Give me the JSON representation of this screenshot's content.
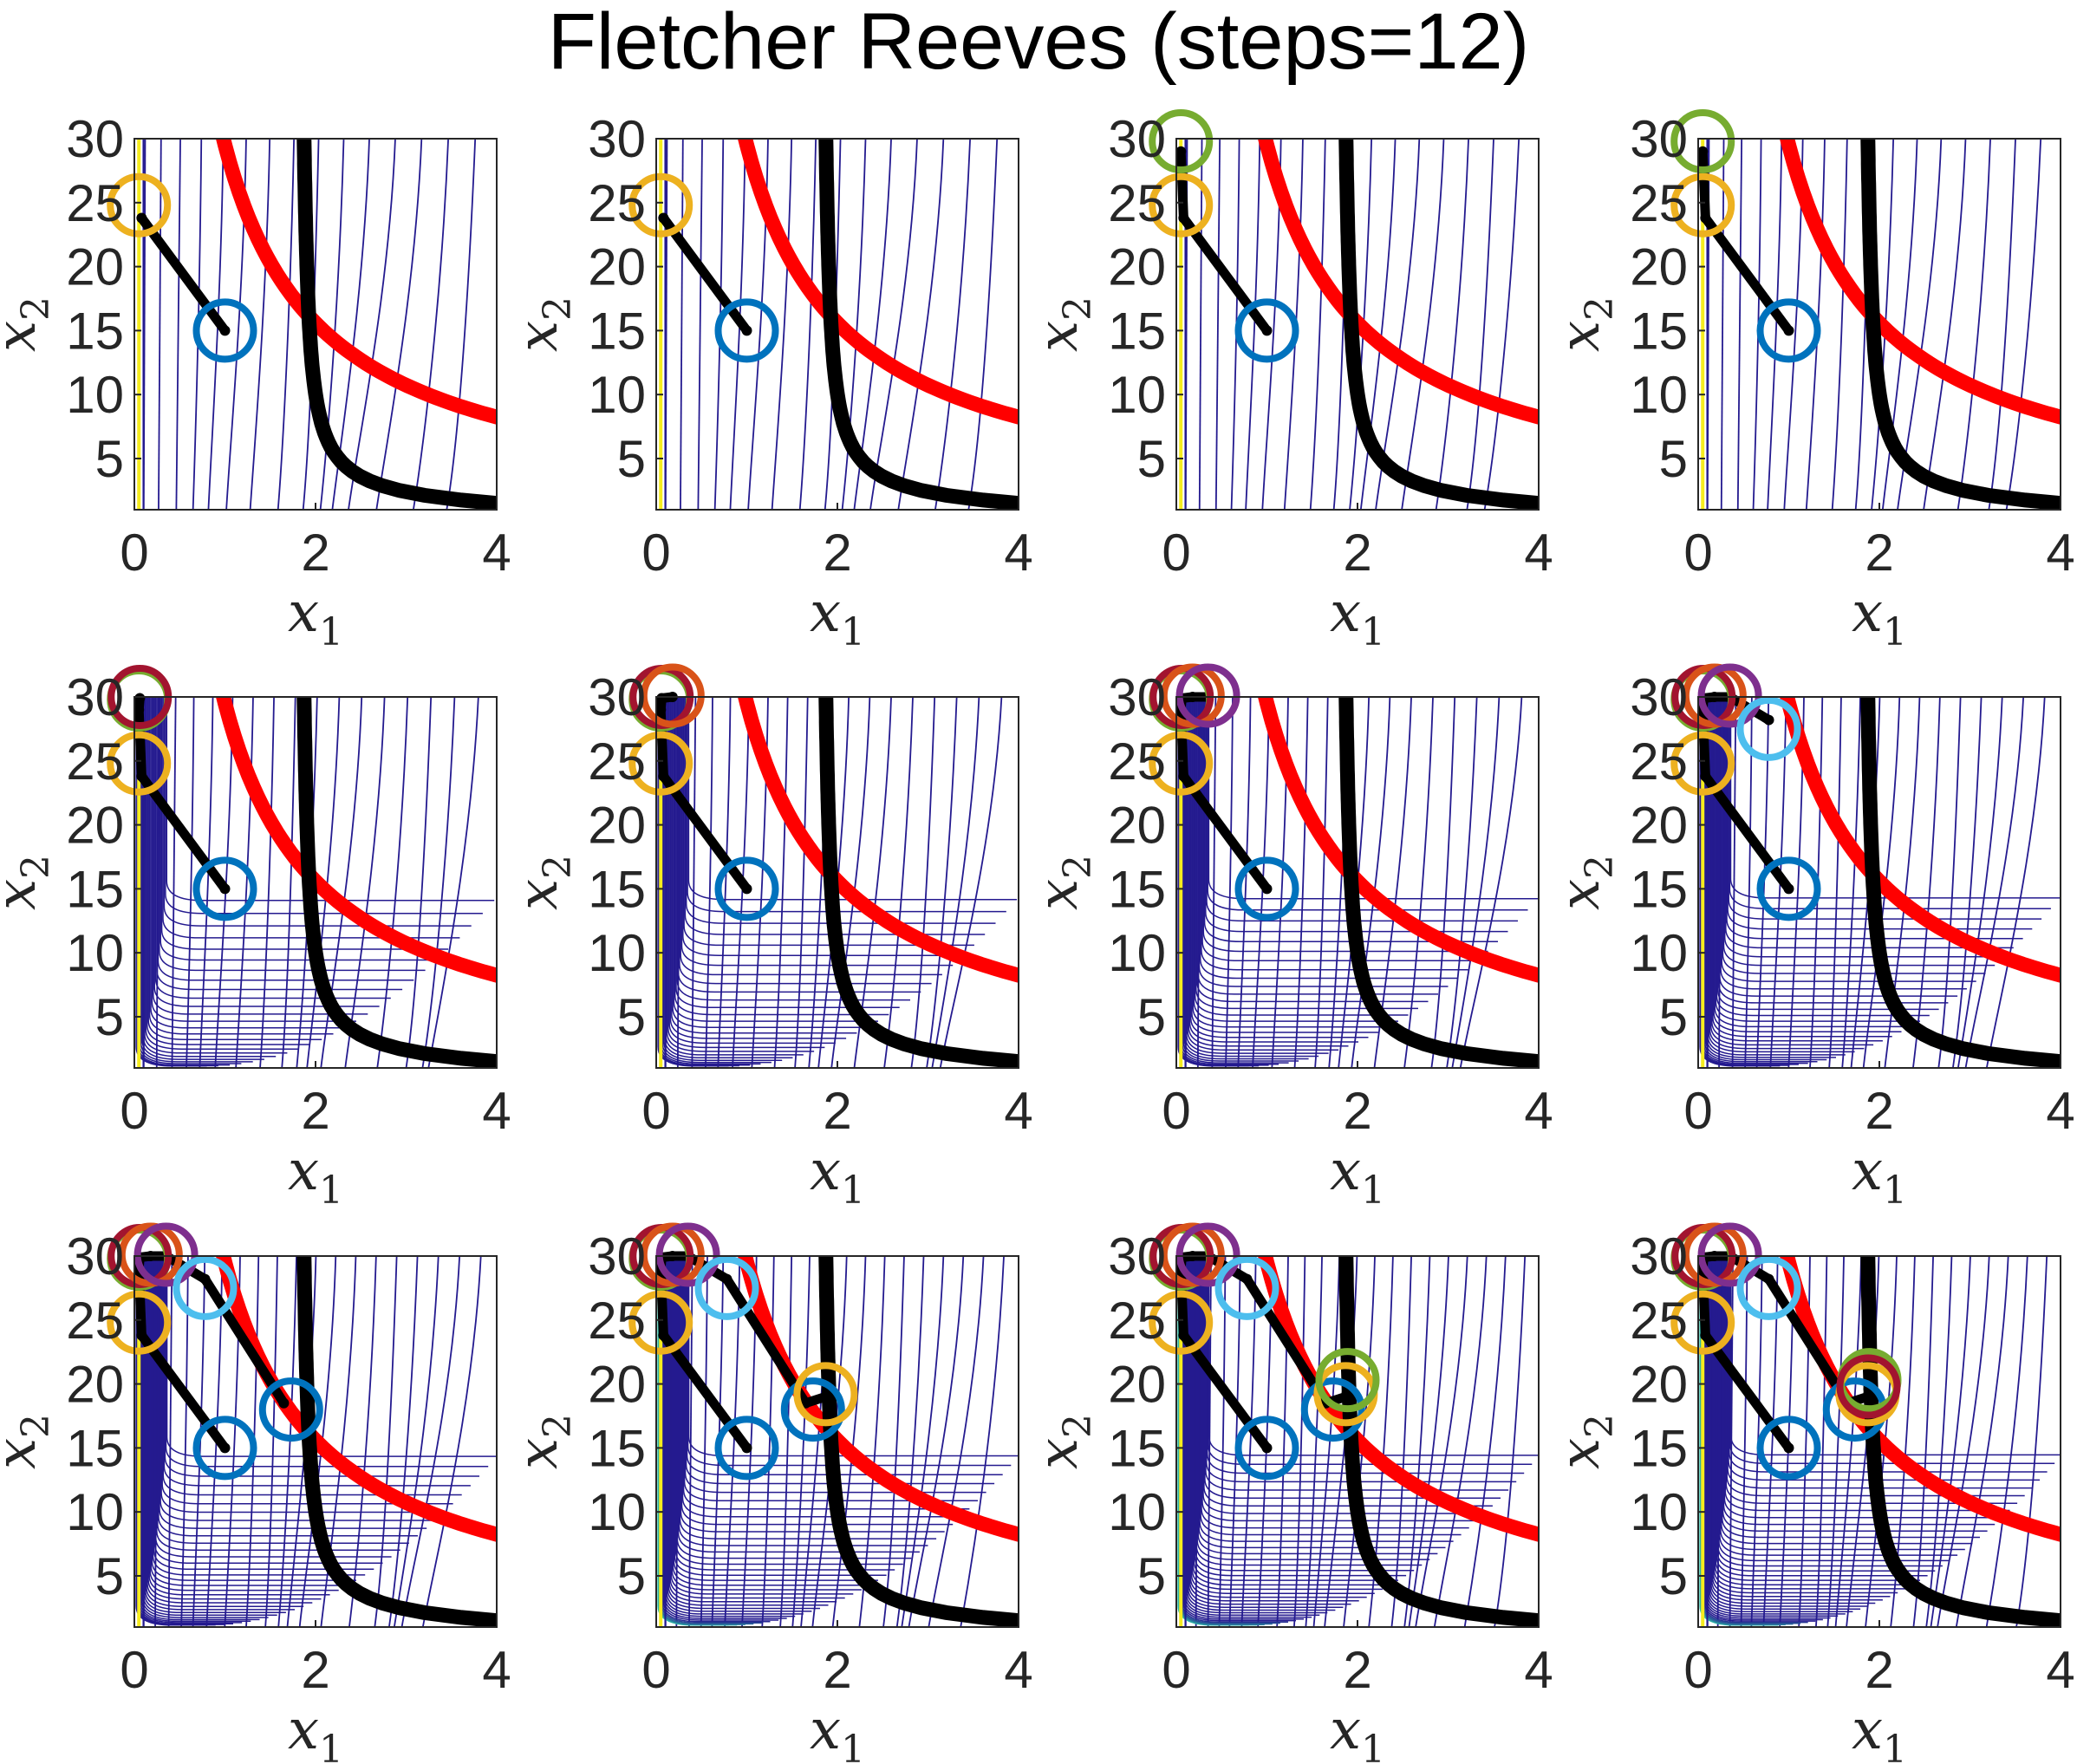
{
  "figure": {
    "title": "Fletcher Reeves (steps=12)"
  },
  "colors": {
    "constraint_red": "#ff0000",
    "constraint_black": "#000000",
    "contour_low": "#241a8f",
    "contour_mid": "#3d6bd9",
    "contour_high": "#2fc4a8",
    "contour_top": "#f5ec1f",
    "path": "#000000",
    "iterate_palette": [
      "#0072bd",
      "#edb120",
      "#77ac30",
      "#a2142f",
      "#d95319",
      "#7e2f8e",
      "#4dbeee",
      "#0072bd",
      "#edb120",
      "#77ac30",
      "#a2142f",
      "#d95319",
      "#7e2f8e"
    ]
  },
  "axes_common": {
    "xlabel": "x",
    "xlabel_sub": "1",
    "ylabel": "x",
    "ylabel_sub": "2",
    "xlim": [
      0,
      4
    ],
    "ylim": [
      1,
      30
    ],
    "xticks": [
      "0",
      "2",
      "4"
    ],
    "yticks": [
      "5",
      "10",
      "15",
      "20",
      "25",
      "30"
    ],
    "grid": false
  },
  "chart_data": [
    {
      "type": "line",
      "panel": 1,
      "iterates": [
        [
          1.0,
          15.0
        ],
        [
          0.05,
          24.8
        ]
      ],
      "path": [
        [
          1.0,
          15.0
        ],
        [
          0.08,
          23.8
        ]
      ]
    },
    {
      "type": "line",
      "panel": 2,
      "iterates": [
        [
          1.0,
          15.0
        ],
        [
          0.05,
          24.8
        ]
      ],
      "path": [
        [
          1.0,
          15.0
        ],
        [
          0.08,
          23.8
        ]
      ]
    },
    {
      "type": "line",
      "panel": 3,
      "iterates": [
        [
          1.0,
          15.0
        ],
        [
          0.05,
          24.8
        ],
        [
          0.05,
          29.8
        ]
      ],
      "path": [
        [
          1.0,
          15.0
        ],
        [
          0.08,
          23.8
        ],
        [
          0.05,
          29.0
        ]
      ]
    },
    {
      "type": "line",
      "panel": 4,
      "iterates": [
        [
          1.0,
          15.0
        ],
        [
          0.05,
          24.8
        ],
        [
          0.05,
          29.8
        ]
      ],
      "path": [
        [
          1.0,
          15.0
        ],
        [
          0.08,
          23.8
        ],
        [
          0.05,
          29.0
        ]
      ]
    },
    {
      "type": "line",
      "panel": 5,
      "iterates": [
        [
          1.0,
          15.0
        ],
        [
          0.05,
          24.8
        ],
        [
          0.05,
          29.8
        ],
        [
          0.06,
          30.0
        ]
      ],
      "path": [
        [
          1.0,
          15.0
        ],
        [
          0.08,
          23.8
        ],
        [
          0.05,
          29.0
        ],
        [
          0.06,
          29.9
        ]
      ]
    },
    {
      "type": "line",
      "panel": 6,
      "iterates": [
        [
          1.0,
          15.0
        ],
        [
          0.05,
          24.8
        ],
        [
          0.05,
          29.8
        ],
        [
          0.06,
          30.0
        ],
        [
          0.18,
          30.1
        ]
      ],
      "path": [
        [
          1.0,
          15.0
        ],
        [
          0.08,
          23.8
        ],
        [
          0.05,
          29.0
        ],
        [
          0.06,
          29.9
        ],
        [
          0.18,
          30.0
        ]
      ]
    },
    {
      "type": "line",
      "panel": 7,
      "iterates": [
        [
          1.0,
          15.0
        ],
        [
          0.05,
          24.8
        ],
        [
          0.05,
          29.8
        ],
        [
          0.06,
          30.0
        ],
        [
          0.18,
          30.1
        ],
        [
          0.35,
          30.1
        ]
      ],
      "path": [
        [
          1.0,
          15.0
        ],
        [
          0.08,
          23.8
        ],
        [
          0.05,
          29.0
        ],
        [
          0.06,
          29.9
        ],
        [
          0.18,
          30.0
        ],
        [
          0.35,
          30.0
        ]
      ]
    },
    {
      "type": "line",
      "panel": 8,
      "iterates": [
        [
          1.0,
          15.0
        ],
        [
          0.05,
          24.8
        ],
        [
          0.05,
          29.8
        ],
        [
          0.06,
          30.0
        ],
        [
          0.18,
          30.1
        ],
        [
          0.35,
          30.1
        ],
        [
          0.78,
          27.5
        ]
      ],
      "path": [
        [
          1.0,
          15.0
        ],
        [
          0.08,
          23.8
        ],
        [
          0.05,
          29.0
        ],
        [
          0.06,
          29.9
        ],
        [
          0.18,
          30.0
        ],
        [
          0.35,
          30.0
        ],
        [
          0.78,
          28.2
        ]
      ]
    },
    {
      "type": "line",
      "panel": 9,
      "iterates": [
        [
          1.0,
          15.0
        ],
        [
          0.05,
          24.8
        ],
        [
          0.05,
          29.8
        ],
        [
          0.06,
          30.0
        ],
        [
          0.18,
          30.1
        ],
        [
          0.35,
          30.1
        ],
        [
          0.78,
          27.5
        ],
        [
          1.73,
          18.0
        ]
      ],
      "path": [
        [
          1.0,
          15.0
        ],
        [
          0.08,
          23.8
        ],
        [
          0.05,
          29.0
        ],
        [
          0.06,
          29.9
        ],
        [
          0.18,
          30.0
        ],
        [
          0.35,
          30.0
        ],
        [
          0.78,
          28.2
        ],
        [
          1.65,
          18.5
        ]
      ]
    },
    {
      "type": "line",
      "panel": 10,
      "iterates": [
        [
          1.0,
          15.0
        ],
        [
          0.05,
          24.8
        ],
        [
          0.05,
          29.8
        ],
        [
          0.06,
          30.0
        ],
        [
          0.18,
          30.1
        ],
        [
          0.35,
          30.1
        ],
        [
          0.78,
          27.5
        ],
        [
          1.73,
          18.0
        ],
        [
          1.87,
          19.2
        ]
      ],
      "path": [
        [
          1.0,
          15.0
        ],
        [
          0.08,
          23.8
        ],
        [
          0.05,
          29.0
        ],
        [
          0.06,
          29.9
        ],
        [
          0.18,
          30.0
        ],
        [
          0.35,
          30.0
        ],
        [
          0.78,
          28.2
        ],
        [
          1.65,
          18.5
        ],
        [
          1.87,
          19.0
        ]
      ]
    },
    {
      "type": "line",
      "panel": 11,
      "iterates": [
        [
          1.0,
          15.0
        ],
        [
          0.05,
          24.8
        ],
        [
          0.05,
          29.8
        ],
        [
          0.06,
          30.0
        ],
        [
          0.18,
          30.1
        ],
        [
          0.35,
          30.1
        ],
        [
          0.78,
          27.5
        ],
        [
          1.73,
          18.0
        ],
        [
          1.87,
          19.2
        ],
        [
          1.89,
          20.3
        ]
      ],
      "path": [
        [
          1.0,
          15.0
        ],
        [
          0.08,
          23.8
        ],
        [
          0.05,
          29.0
        ],
        [
          0.06,
          29.9
        ],
        [
          0.18,
          30.0
        ],
        [
          0.35,
          30.0
        ],
        [
          0.78,
          28.2
        ],
        [
          1.65,
          18.5
        ],
        [
          1.87,
          19.0
        ],
        [
          1.89,
          19.8
        ]
      ]
    },
    {
      "type": "line",
      "panel": 12,
      "iterates": [
        [
          1.0,
          15.0
        ],
        [
          0.05,
          24.8
        ],
        [
          0.05,
          29.8
        ],
        [
          0.06,
          30.0
        ],
        [
          0.18,
          30.1
        ],
        [
          0.35,
          30.1
        ],
        [
          0.78,
          27.5
        ],
        [
          1.73,
          18.0
        ],
        [
          1.87,
          19.2
        ],
        [
          1.89,
          20.3
        ],
        [
          1.88,
          19.8
        ]
      ],
      "path": [
        [
          1.0,
          15.0
        ],
        [
          0.08,
          23.8
        ],
        [
          0.05,
          29.0
        ],
        [
          0.06,
          29.9
        ],
        [
          0.18,
          30.0
        ],
        [
          0.35,
          30.0
        ],
        [
          0.78,
          28.2
        ],
        [
          1.65,
          18.5
        ],
        [
          1.87,
          19.0
        ],
        [
          1.89,
          19.8
        ],
        [
          1.88,
          19.6
        ]
      ]
    }
  ]
}
